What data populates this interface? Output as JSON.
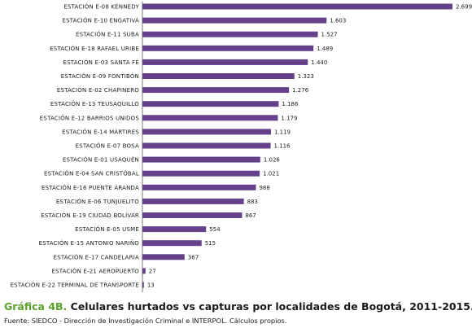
{
  "chart_data": {
    "type": "bar",
    "orientation": "horizontal",
    "bar_color": "#65418c",
    "categories": [
      "ESTACIÓN E-08 KENNEDY",
      "ESTACIÓN E-10 ENGATIVÁ",
      "ESTACIÓN E-11 SUBA",
      "ESTACIÓN E-18 RAFAEL URIBE",
      "ESTACIÓN E-03 SANTA FÉ",
      "ESTACIÓN E-09 FONTIBÓN",
      "ESTACIÓN E-02 CHAPINERO",
      "ESTACIÓN E-13 TEUSAQUILLO",
      "ESTACIÓN E-12 BARRIOS UNIDOS",
      "ESTACIÓN E-14 MÁRTIRES",
      "ESTACIÓN E-07 BOSA",
      "ESTACIÓN E-01 USAQUÉN",
      "ESTACIÓN E-04  SAN CRISTÓBAL",
      "ESTACIÓN E-16 PUENTE ARANDA",
      "ESTACIÓN E-06 TUNJUELITO",
      "ESTACIÓN E-19 CIUDAD BOLÍVAR",
      "ESTACIÓN E-05 USME",
      "ESTACIÓN E-15 ANTONIO NARIÑO",
      "ESTACIÓN E-17 CANDELARIA",
      "ESTACIÓN E-21 AEROPUERTO",
      "ESTACIÓN E-22 TERMINAL DE TRANSPORTE"
    ],
    "values": [
      2699,
      1603,
      1527,
      1489,
      1440,
      1323,
      1276,
      1186,
      1179,
      1119,
      1116,
      1026,
      1021,
      988,
      883,
      867,
      554,
      515,
      367,
      27,
      13
    ],
    "value_labels": [
      "2.699",
      "1.603",
      "1.527",
      "1.489",
      "1.440",
      "1.323",
      "1.276",
      "1.186",
      "1.179",
      "1.119",
      "1.116",
      "1.026",
      "1.021",
      "988",
      "883",
      "867",
      "554",
      "515",
      "367",
      "27",
      "13"
    ],
    "xlim": [
      0,
      2699
    ],
    "grid": false,
    "legend": "none"
  },
  "caption": {
    "prefix": "Gráfica 4B.",
    "title": " Celulares hurtados vs capturas por localidades de Bogotá, 2011-2015."
  },
  "source": "Fuente: SIEDCO - Dirección de Investigación Criminal e INTERPOL. Cálculos propios."
}
